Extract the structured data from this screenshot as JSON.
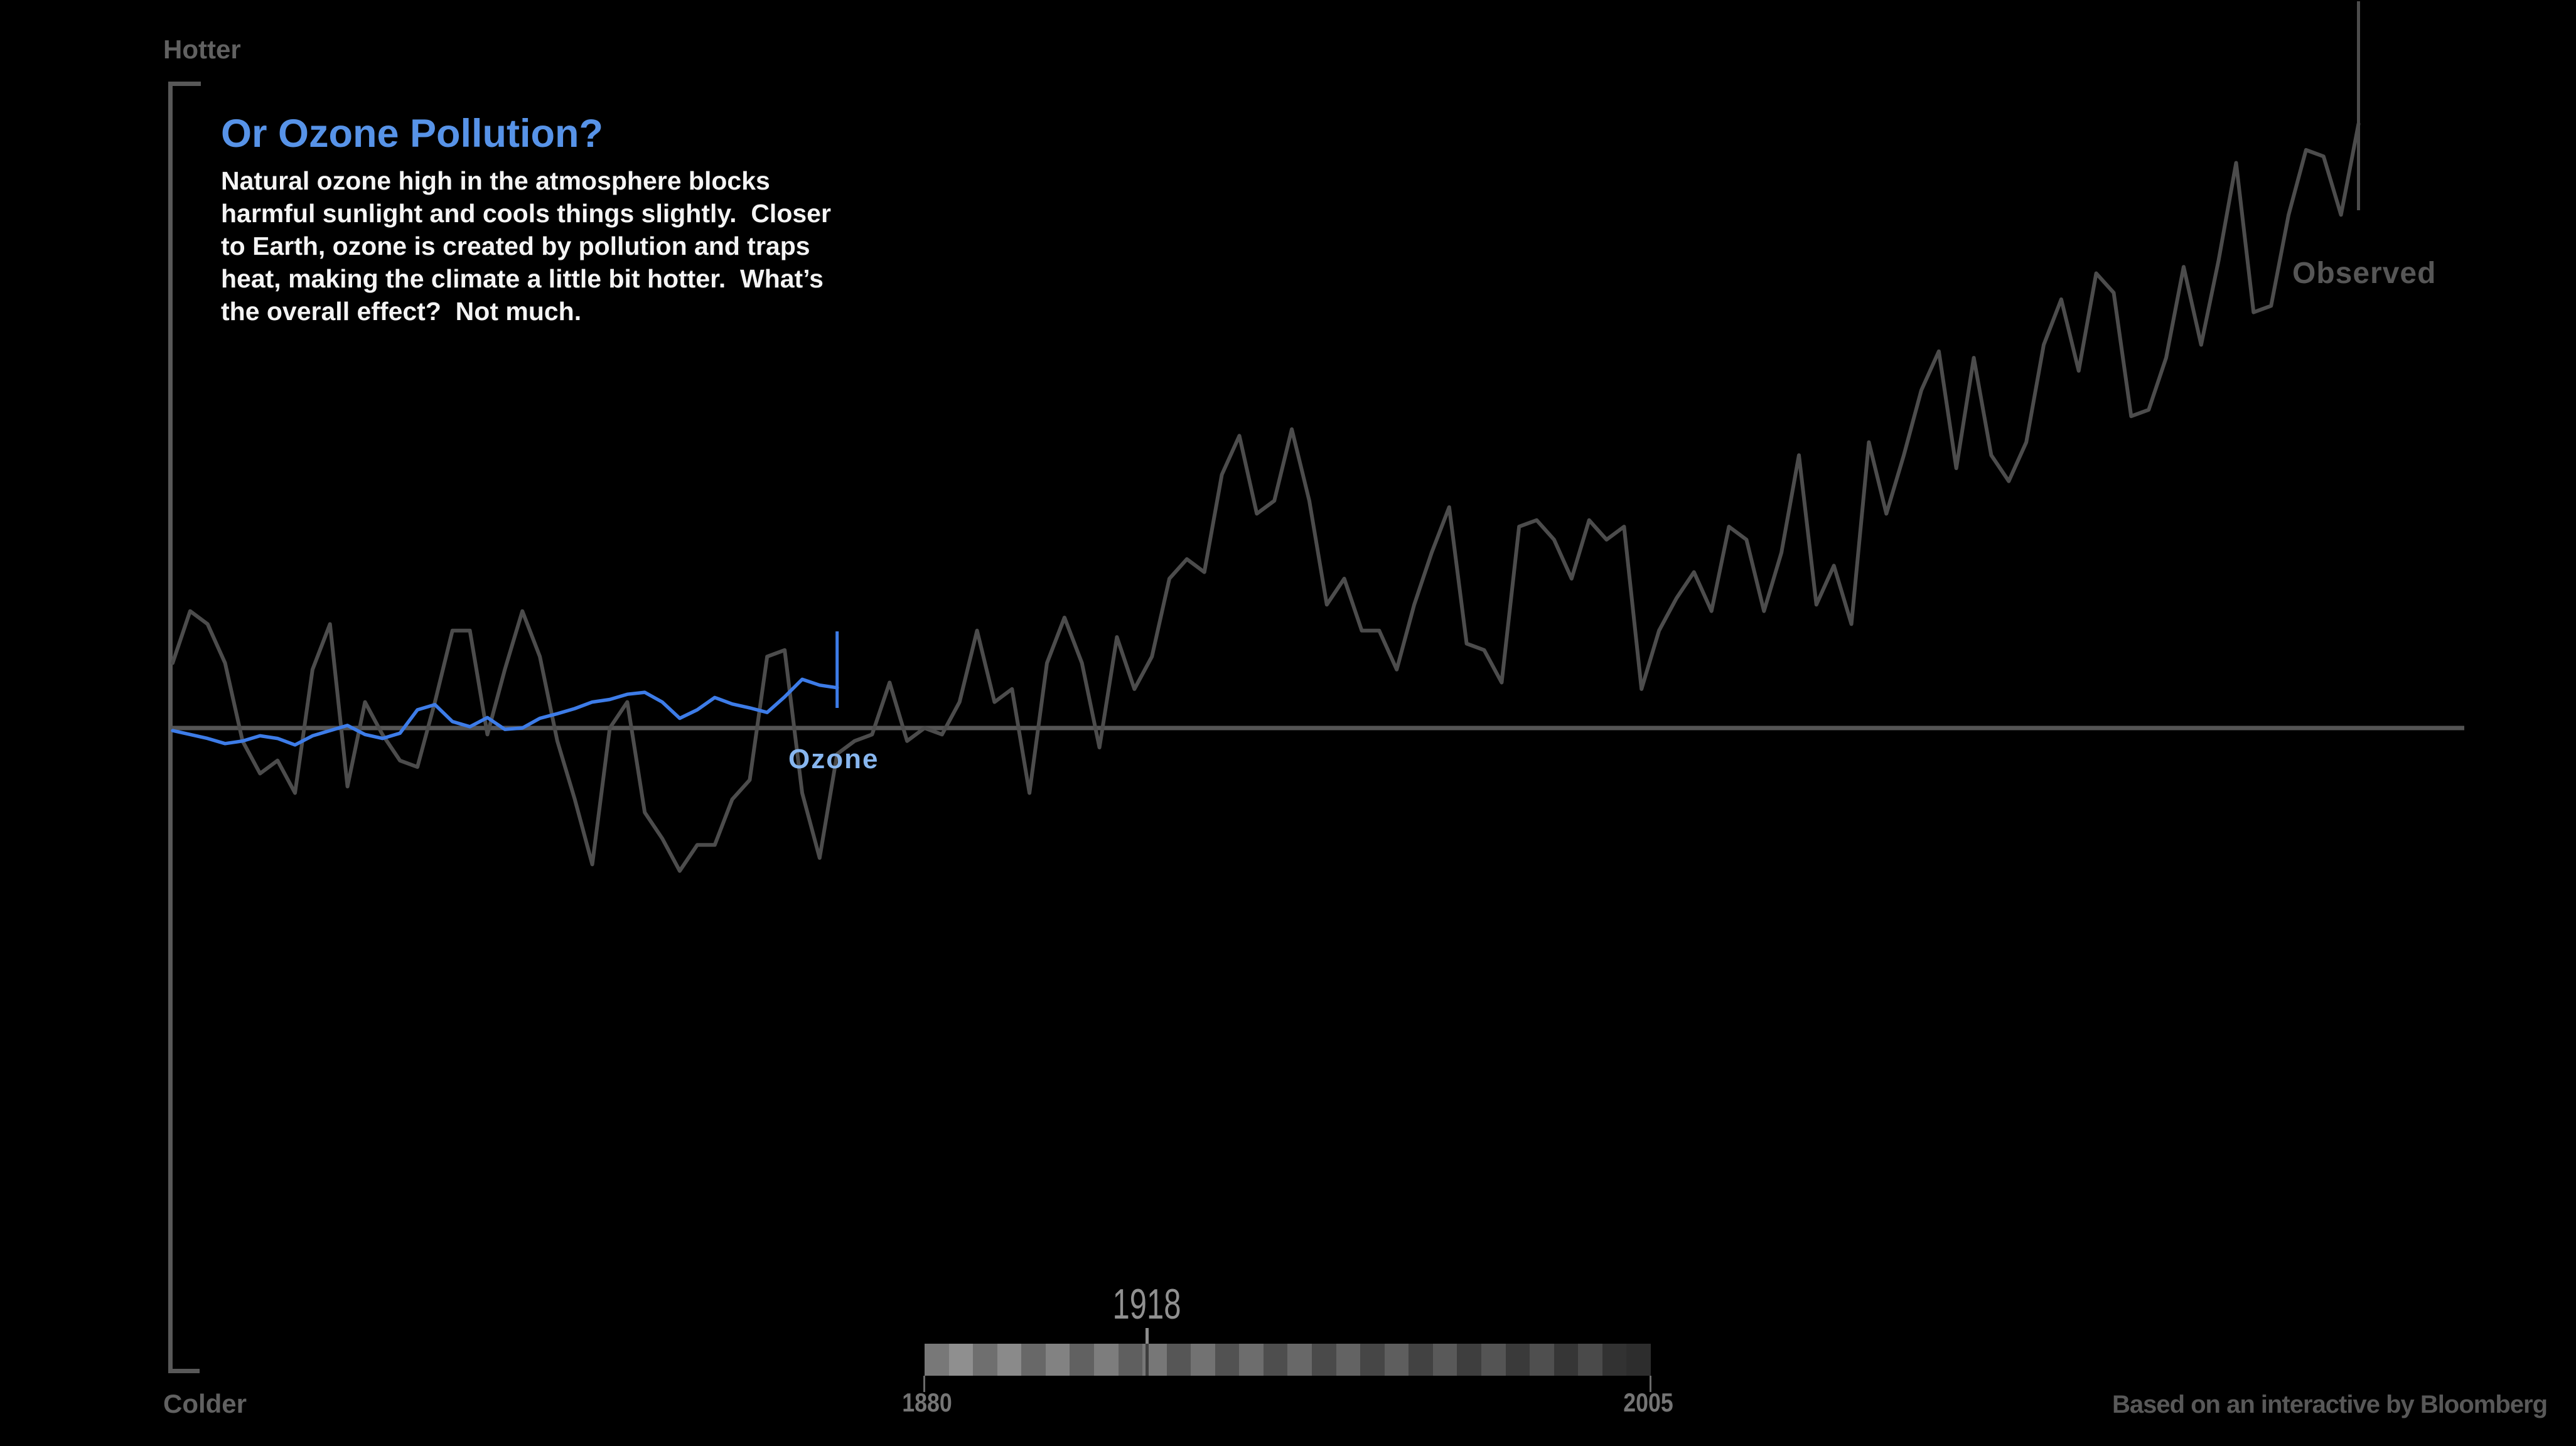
{
  "page": {
    "background": "#000000",
    "credit": "Based on an interactive by Bloomberg"
  },
  "axis": {
    "top_label": "Hotter",
    "bottom_label": "Colder"
  },
  "panel": {
    "title": "Or Ozone Pollution?",
    "body": "Natural ozone high in the atmosphere blocks\nharmful sunlight and cools things slightly.  Closer\nto Earth, ozone is created by pollution and traps\nheat, making the climate a little bit hotter.  What’s\nthe overall effect?  Not much."
  },
  "labels": {
    "observed": "Observed",
    "ozone": "Ozone"
  },
  "slider": {
    "current_year": "1918",
    "start_year": "1880",
    "end_year": "2005",
    "stripes": [
      "#787878",
      "#8f8f8f",
      "#6f6f6f",
      "#8a8a8a",
      "#686868",
      "#828282",
      "#616161",
      "#7d7d7d",
      "#5f5f5f",
      "#777777",
      "#565656",
      "#727272",
      "#525252",
      "#6d6d6d",
      "#4e4e4e",
      "#686868",
      "#4a4a4a",
      "#636363",
      "#464646",
      "#5e5e5e",
      "#424242",
      "#595959",
      "#3e3e3e",
      "#545454",
      "#3a3a3a",
      "#4f4f4f",
      "#363636",
      "#4a4a4a",
      "#323232",
      "#2d2d2d"
    ]
  },
  "colors": {
    "observed_line": "#4c4c4c",
    "baseline": "#545454",
    "ozone_line": "#3d7ce8",
    "ozone_label": "#87b6ef",
    "title_blue": "#5793e8",
    "body_text": "#f4f4f4",
    "axis_gray": "#585858",
    "muted_label_gray": "#616161"
  },
  "chart_data": {
    "type": "line",
    "title": "Or Ozone Pollution?",
    "x_start": 1880,
    "x_step": 1,
    "xlim": [
      1880,
      2005
    ],
    "baseline_value": 0,
    "ylabel_top": "Hotter",
    "ylabel_bottom": "Colder",
    "legend_position": "inline-labels",
    "grid": false,
    "cursor_year": 1918,
    "value_unit": "estimated temperature anomaly, degrees C vs late-1800s baseline",
    "series": [
      {
        "name": "Observed",
        "color": "#4c4c4c",
        "values": [
          0.1,
          0.18,
          0.16,
          0.1,
          -0.02,
          -0.07,
          -0.05,
          -0.1,
          0.09,
          0.16,
          -0.09,
          0.04,
          -0.01,
          -0.05,
          -0.06,
          0.04,
          0.15,
          0.15,
          -0.01,
          0.09,
          0.18,
          0.11,
          -0.02,
          -0.11,
          -0.21,
          0.0,
          0.04,
          -0.13,
          -0.17,
          -0.22,
          -0.18,
          -0.18,
          -0.11,
          -0.08,
          0.11,
          0.12,
          -0.1,
          -0.2,
          -0.04,
          -0.02,
          -0.01,
          0.07,
          -0.02,
          0.0,
          -0.01,
          0.04,
          0.15,
          0.04,
          0.06,
          -0.1,
          0.1,
          0.17,
          0.1,
          -0.03,
          0.14,
          0.06,
          0.11,
          0.23,
          0.26,
          0.24,
          0.39,
          0.45,
          0.33,
          0.35,
          0.46,
          0.35,
          0.19,
          0.23,
          0.15,
          0.15,
          0.09,
          0.19,
          0.27,
          0.34,
          0.13,
          0.12,
          0.07,
          0.31,
          0.32,
          0.29,
          0.23,
          0.32,
          0.29,
          0.31,
          0.06,
          0.15,
          0.2,
          0.24,
          0.18,
          0.31,
          0.29,
          0.18,
          0.27,
          0.42,
          0.19,
          0.25,
          0.16,
          0.44,
          0.33,
          0.42,
          0.52,
          0.58,
          0.4,
          0.57,
          0.42,
          0.38,
          0.44,
          0.59,
          0.66,
          0.55,
          0.7,
          0.67,
          0.48,
          0.49,
          0.57,
          0.71,
          0.59,
          0.72,
          0.87,
          0.64,
          0.65,
          0.79,
          0.89,
          0.88,
          0.79,
          0.93
        ]
      },
      {
        "name": "Ozone",
        "color": "#3d7ce8",
        "values": [
          -0.004,
          -0.01,
          -0.016,
          -0.024,
          -0.02,
          -0.012,
          -0.016,
          -0.026,
          -0.012,
          -0.004,
          0.004,
          -0.01,
          -0.016,
          -0.008,
          0.028,
          0.036,
          0.01,
          0.002,
          0.016,
          -0.002,
          0.0,
          0.015,
          0.022,
          0.03,
          0.04,
          0.044,
          0.052,
          0.055,
          0.04,
          0.015,
          0.028,
          0.047,
          0.037,
          0.031,
          0.024,
          0.048,
          0.075,
          0.066,
          0.062
        ]
      }
    ]
  }
}
